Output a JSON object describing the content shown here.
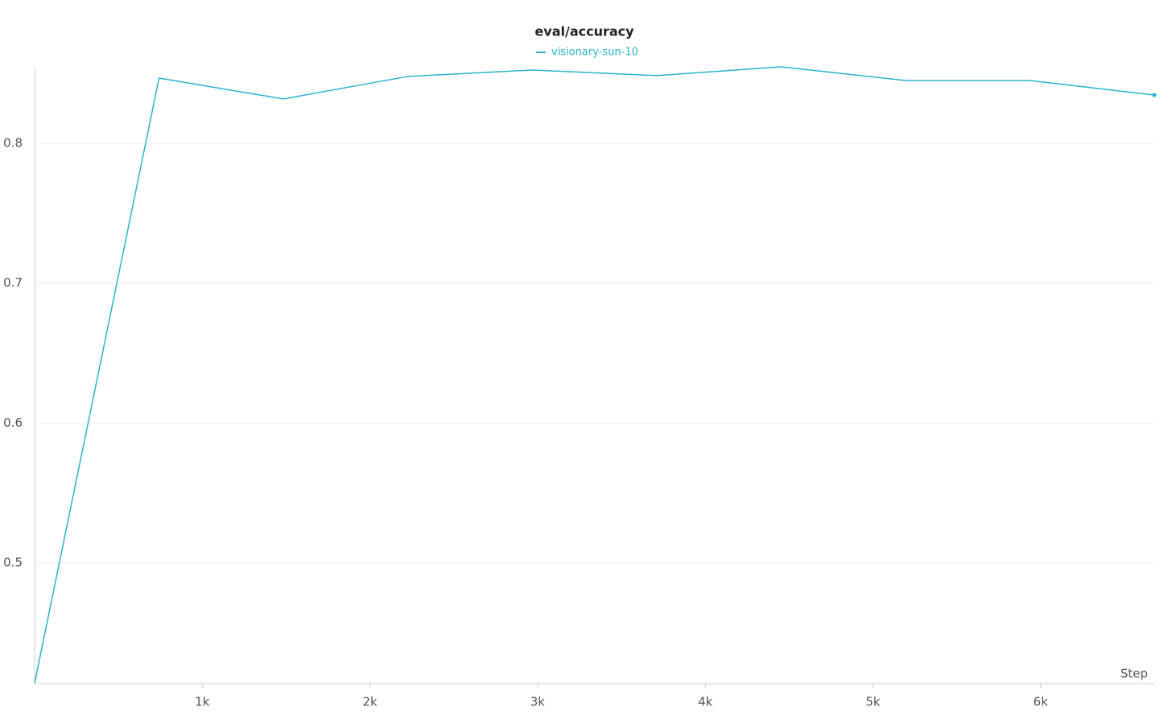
{
  "chart_data": {
    "type": "line",
    "title": "eval/accuracy",
    "x_label": "Step",
    "x": [
      0,
      742,
      1484,
      2226,
      2968,
      3710,
      4452,
      5194,
      5936,
      6678
    ],
    "series": [
      {
        "name": "visionary-sun-10",
        "color": "#2bb3cc",
        "values": [
          0.414,
          0.8466,
          0.8317,
          0.8478,
          0.8524,
          0.8484,
          0.8547,
          0.8449,
          0.8449,
          0.8345
        ]
      }
    ],
    "xlim": [
      0,
      6678
    ],
    "xticks": [
      {
        "value": 1000,
        "label": "1k"
      },
      {
        "value": 2000,
        "label": "2k"
      },
      {
        "value": 3000,
        "label": "3k"
      },
      {
        "value": 4000,
        "label": "4k"
      },
      {
        "value": 5000,
        "label": "5k"
      },
      {
        "value": 6000,
        "label": "6k"
      }
    ],
    "ylim": [
      0.4136,
      0.8541
    ],
    "yticks": [
      0.5,
      0.6,
      0.7,
      0.8
    ],
    "grid": true
  }
}
